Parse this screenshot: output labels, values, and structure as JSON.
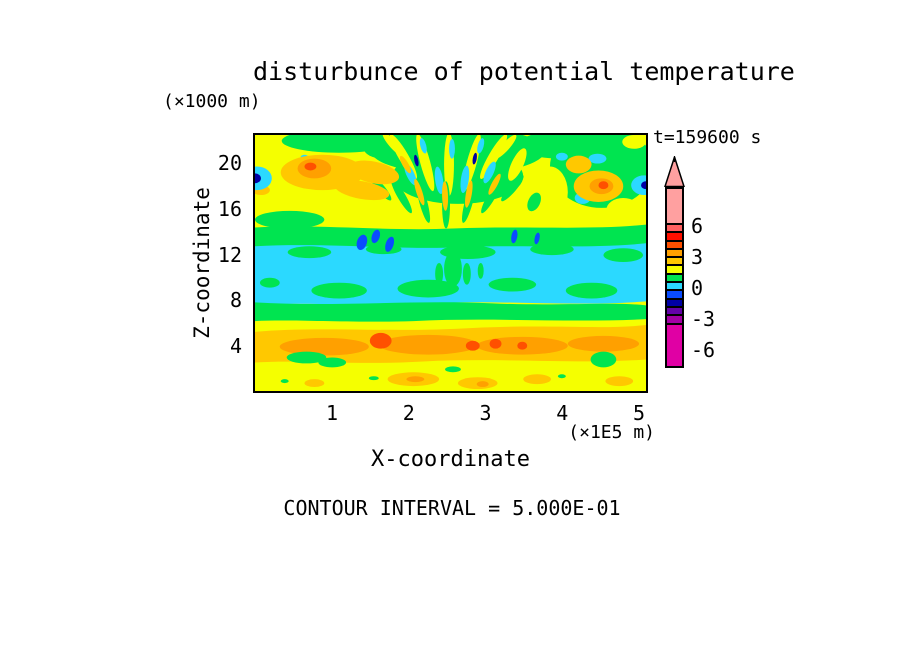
{
  "figure": {
    "background": "#FFFFFF",
    "text_color": "#000000"
  },
  "chart_data": {
    "type": "heatmap",
    "title": "disturbunce of potential temperature",
    "annotation_time": "t=159600 s",
    "footnote": "CONTOUR INTERVAL = 5.000E-01",
    "contour_interval": 0.5,
    "x_axis": {
      "label": "X-coordinate",
      "units": "(×1E5 m)",
      "ticks": [
        "1",
        "2",
        "3",
        "4",
        "5"
      ],
      "range": [
        0,
        5.1
      ],
      "grid": false
    },
    "y_axis": {
      "label": "Z-coordinate",
      "units": "(×1000 m)",
      "ticks": [
        "20",
        "16",
        "12",
        "8",
        "4"
      ],
      "range": [
        0,
        22.6
      ],
      "grid": false
    },
    "palette": {
      "pink": "#FFA0A0",
      "salmon": "#FF6060",
      "red": "#FF0F00",
      "orangered": "#FF5000",
      "orange": "#FFA000",
      "amber": "#FFC800",
      "yellow": "#F5FF00",
      "green": "#00E450",
      "cyan": "#2BD9FF",
      "blue": "#0A4CFF",
      "navy": "#0000A5",
      "purple": "#6402A8",
      "magenta2": "#A400A4",
      "magenta": "#E000A4"
    },
    "colorbar": {
      "position": "right",
      "arrow": "up",
      "labels": [
        "6",
        "3",
        "0",
        "-3",
        "-6"
      ],
      "cells": [
        {
          "color": "pink",
          "range": "> 6"
        },
        {
          "color": "salmon",
          "range": "5 to 6"
        },
        {
          "color": "red",
          "range": "4 to 5"
        },
        {
          "color": "orangered",
          "range": "3 to 4"
        },
        {
          "color": "orange",
          "range": "2 to 3"
        },
        {
          "color": "amber",
          "range": "1 to 2"
        },
        {
          "color": "yellow",
          "range": "0 to 1"
        },
        {
          "color": "green",
          "range": "-1 to 0"
        },
        {
          "color": "cyan",
          "range": "-2 to -1"
        },
        {
          "color": "blue",
          "range": "-3 to -2"
        },
        {
          "color": "navy",
          "range": "-4 to -3"
        },
        {
          "color": "purple",
          "range": "-5 to -4"
        },
        {
          "color": "magenta2",
          "range": "-6 to -5"
        },
        {
          "color": "magenta",
          "range": "< -6"
        }
      ]
    },
    "visible_features": [
      "yellow background field (values 0 to 1)",
      "fan of alternating green/yellow/cyan streaks radiating downward from top center",
      "warm (orange/amber) cells near z=18 on left and right sides with small dark cores",
      "small blue/navy minima touching the left and right plot edges near z=17",
      "horizontal cyan band (-2 to -1) around z=8-13 with embedded green patches and a few blue spots",
      "green bands bordering the cyan band above and below",
      "amber/orange band (1 to 3) around z=3-6 with orange-red cores",
      "yellow bottom layer with scattered amber patches and small green spots"
    ]
  }
}
